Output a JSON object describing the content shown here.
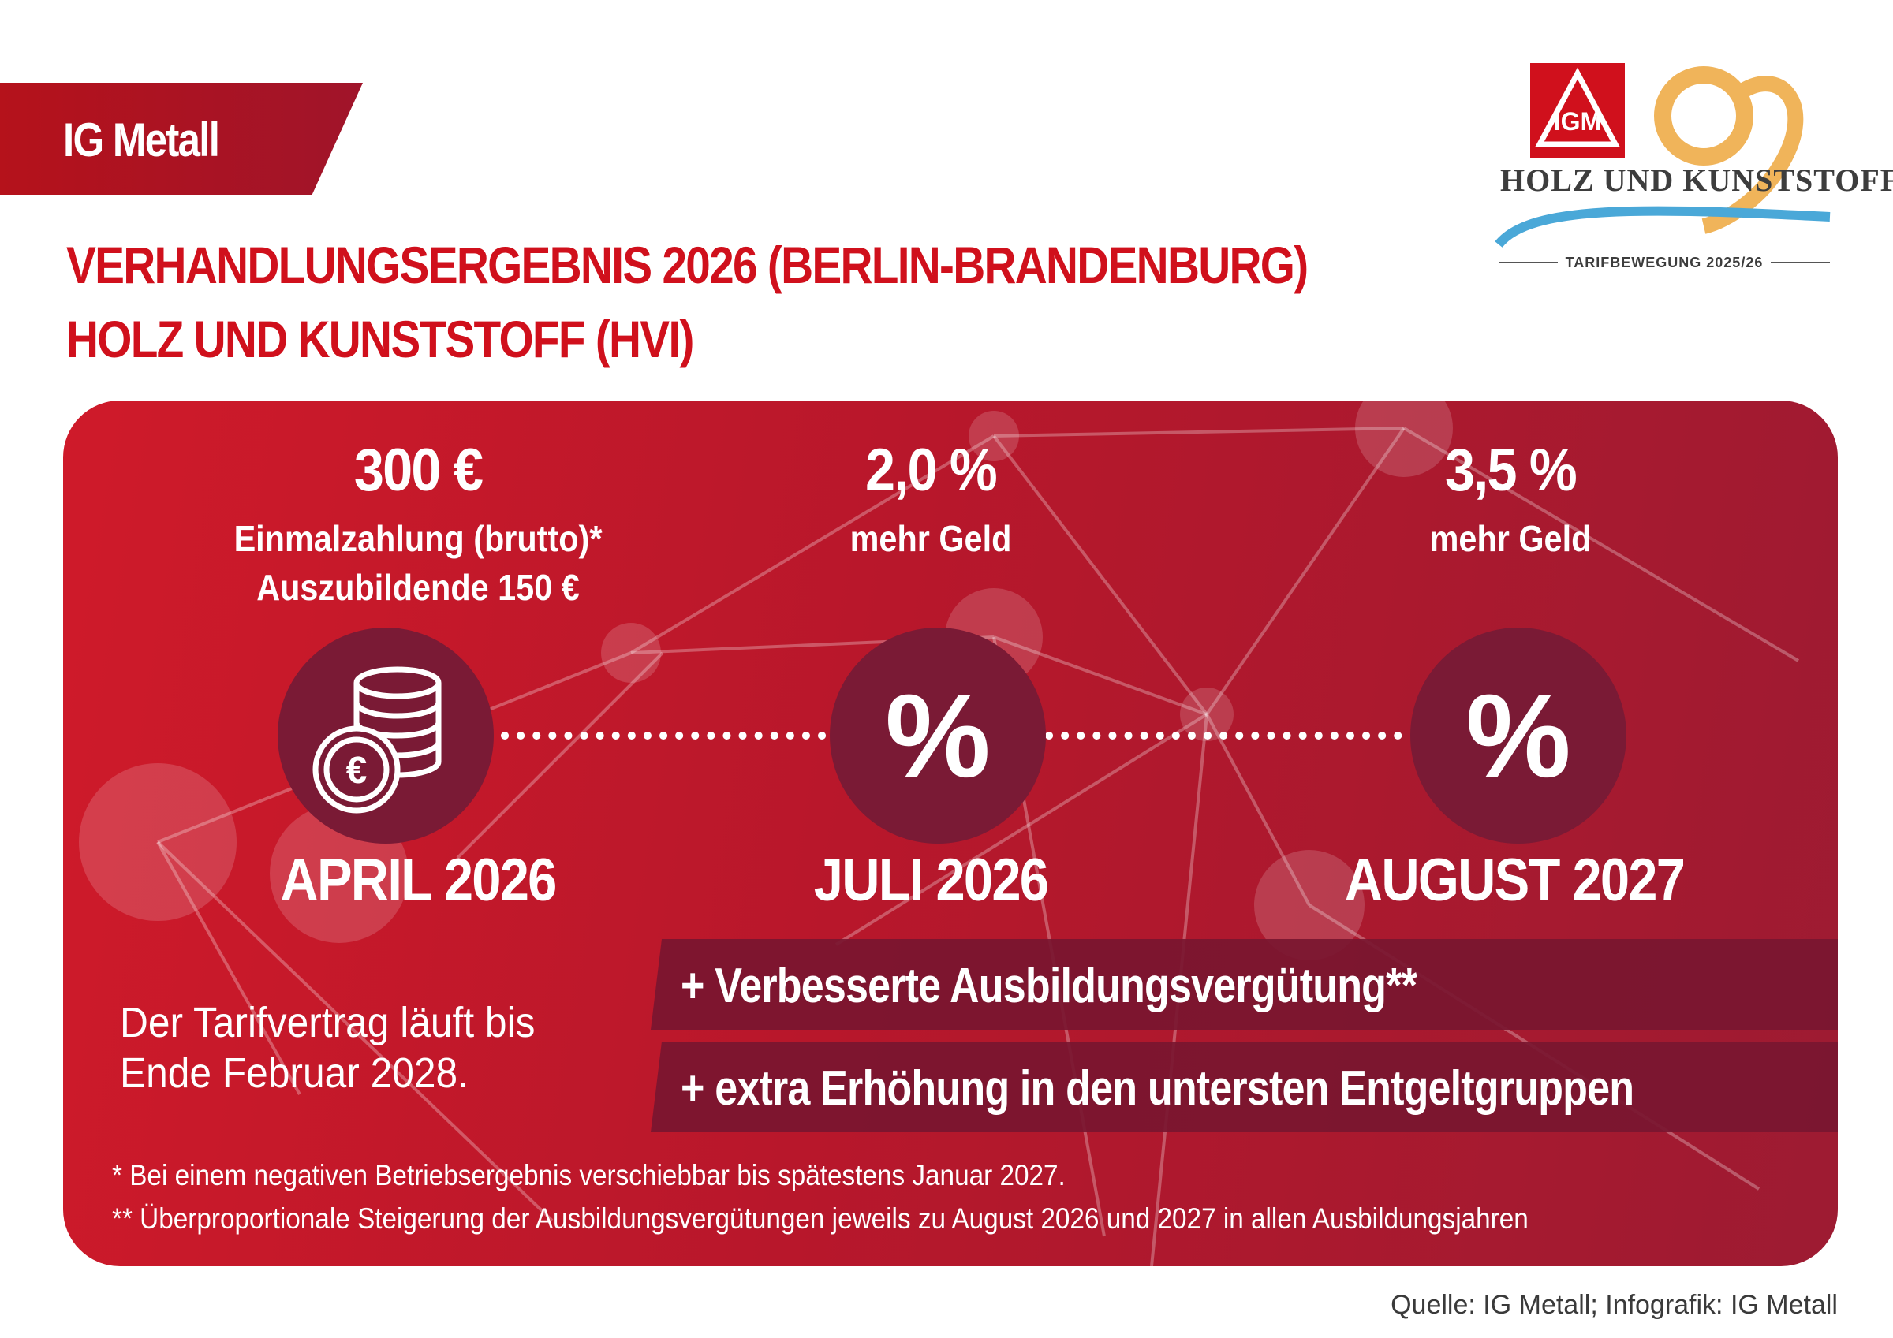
{
  "brand": {
    "name": "IG Metall"
  },
  "headline": {
    "line1": "VERHANDLUNGSERGEBNIS 2026 (BERLIN-BRANDENBURG)",
    "line2": "HOLZ UND KUNSTSTOFF (HVI)"
  },
  "logo": {
    "emblem": "IGM",
    "wordmark": "HOLZ UND KUNSTSTOFF",
    "subtitle": "TARIFBEWEGUNG 2025/26"
  },
  "milestones": [
    {
      "amount": "300 €",
      "line1": "Einmalzahlung (brutto)*",
      "line2": "Auszubildende 150 €",
      "icon": "euro-coins-icon",
      "date": "APRIL 2026"
    },
    {
      "amount": "2,0 %",
      "line1": "mehr Geld",
      "icon": "percent-icon",
      "symbol": "%",
      "date": "JULI 2026"
    },
    {
      "amount": "3,5 %",
      "line1": "mehr Geld",
      "icon": "percent-icon",
      "symbol": "%",
      "date": "AUGUST 2027"
    }
  ],
  "runtime": {
    "line1": "Der Tarifvertrag läuft bis",
    "line2": "Ende Februar 2028."
  },
  "extras": [
    "+ Verbesserte Ausbildungsvergütung**",
    "+ extra Erhöhung in den untersten Entgeltgruppen"
  ],
  "footnotes": [
    "*   Bei einem negativen Betriebsergebnis verschiebbar bis spätestens Januar 2027.",
    "** Überproportionale Steigerung der Ausbildungsvergütungen jeweils zu August 2026 und 2027 in allen Ausbildungsjahren"
  ],
  "source": "Quelle: IG Metall; Infografik: IG Metall",
  "colors": {
    "brand_red": "#d0101c",
    "panel_red": "#b8172b",
    "circle_dark": "#7a1a35",
    "logo_gold": "#f0b45a",
    "logo_blue": "#4aa8d8"
  }
}
